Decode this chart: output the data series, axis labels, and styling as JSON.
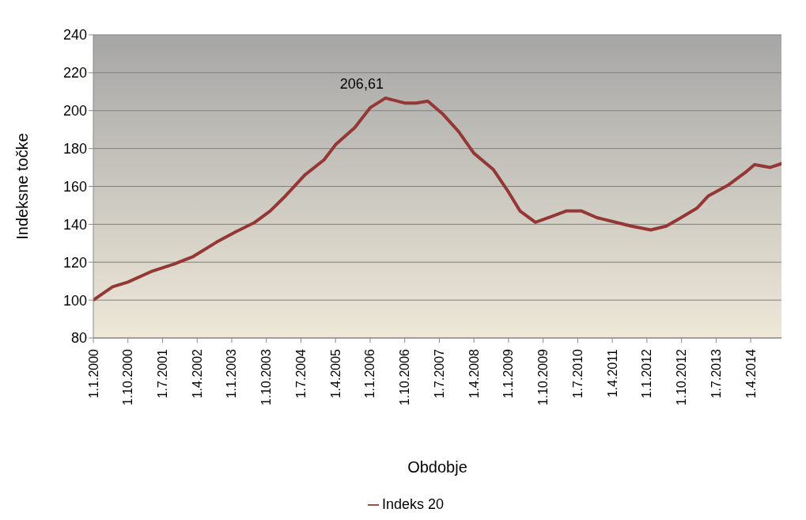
{
  "chart_data": {
    "type": "line",
    "xlabel": "Obdobje",
    "ylabel": "Indeksne točke",
    "x": [
      "2000-01",
      "2000-06",
      "2000-10",
      "2001-04",
      "2001-10",
      "2002-03",
      "2002-09",
      "2003-02",
      "2003-07",
      "2003-11",
      "2004-03",
      "2004-08",
      "2005-01",
      "2005-04",
      "2005-09",
      "2006-01",
      "2006-05",
      "2006-10",
      "2007-01",
      "2007-04",
      "2007-08",
      "2007-12",
      "2008-04",
      "2008-09",
      "2009-01",
      "2009-04",
      "2009-08",
      "2009-12",
      "2010-04",
      "2010-08",
      "2010-12",
      "2011-05",
      "2011-09",
      "2012-02",
      "2012-06",
      "2012-09",
      "2013-02",
      "2013-05",
      "2013-10",
      "2014-03",
      "2014-05",
      "2014-09",
      "2014-12"
    ],
    "series": [
      {
        "name": "Indeks 20",
        "color": "#953735",
        "values": [
          100,
          107,
          109.5,
          115,
          119,
          123,
          130.5,
          136,
          141,
          147,
          155,
          166,
          174,
          182,
          191,
          201.5,
          206.61,
          204,
          204,
          205,
          198,
          189,
          177.5,
          169,
          157,
          147,
          141,
          144,
          147,
          147,
          143.5,
          141,
          139,
          137,
          139,
          142.5,
          148.5,
          155,
          160.5,
          168,
          171.5,
          170,
          172
        ]
      }
    ],
    "xlim": [
      "2000-01",
      "2014-12"
    ],
    "xticks": [
      {
        "value": "2000-01",
        "label": "1.1.2000"
      },
      {
        "value": "2000-10",
        "label": "1.10.2000"
      },
      {
        "value": "2001-07",
        "label": "1.7.2001"
      },
      {
        "value": "2002-04",
        "label": "1.4.2002"
      },
      {
        "value": "2003-01",
        "label": "1.1.2003"
      },
      {
        "value": "2003-10",
        "label": "1.10.2003"
      },
      {
        "value": "2004-07",
        "label": "1.7.2004"
      },
      {
        "value": "2005-04",
        "label": "1.4.2005"
      },
      {
        "value": "2006-01",
        "label": "1.1.2006"
      },
      {
        "value": "2006-10",
        "label": "1.10.2006"
      },
      {
        "value": "2007-07",
        "label": "1.7.2007"
      },
      {
        "value": "2008-04",
        "label": "1.4.2008"
      },
      {
        "value": "2009-01",
        "label": "1.1.2009"
      },
      {
        "value": "2009-10",
        "label": "1.10.2009"
      },
      {
        "value": "2010-07",
        "label": "1.7.2010"
      },
      {
        "value": "2011-04",
        "label": "1.4.2011"
      },
      {
        "value": "2012-01",
        "label": "1.1.2012"
      },
      {
        "value": "2012-10",
        "label": "1.10.2012"
      },
      {
        "value": "2013-07",
        "label": "1.7.2013"
      },
      {
        "value": "2014-04",
        "label": "1.4.2014"
      }
    ],
    "ylim": [
      80,
      240
    ],
    "yticks": [
      80,
      100,
      120,
      140,
      160,
      180,
      200,
      220,
      240
    ],
    "annotations": [
      {
        "text": "206,61",
        "x": "2006-05",
        "y": 206.61
      }
    ],
    "grid": "y",
    "legend": "bottom",
    "marker": "none",
    "line_style": "solid"
  }
}
